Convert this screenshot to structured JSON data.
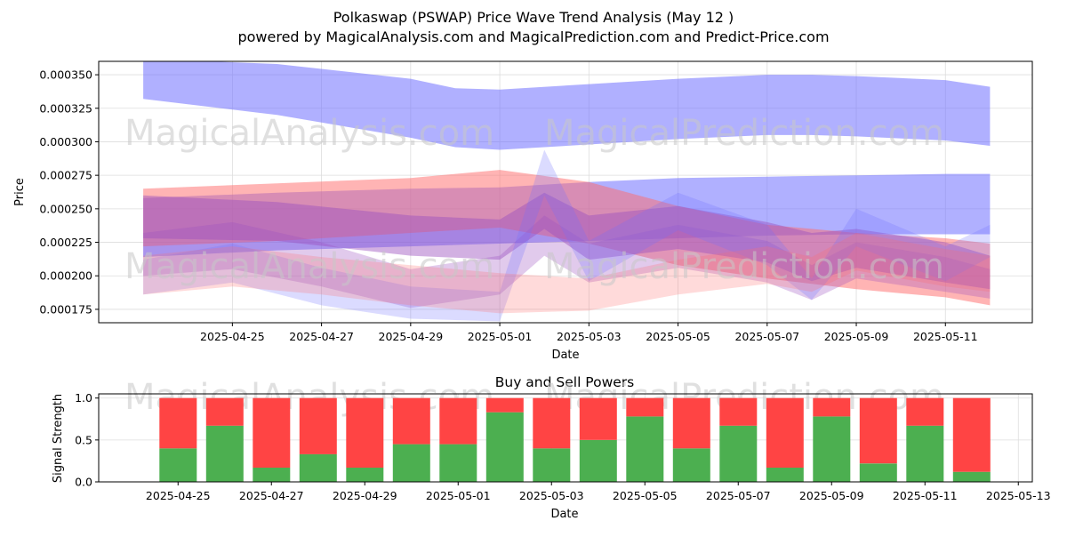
{
  "header": {
    "title": "Polkaswap (PSWAP) Price Wave Trend Analysis (May 12 )",
    "subtitle": "powered by MagicalAnalysis.com and MagicalPrediction.com and Predict-Price.com"
  },
  "watermarks": {
    "analysis": "MagicalAnalysis.com",
    "prediction": "MagicalPrediction.com"
  },
  "colors": {
    "blue_band": "#6f6fff",
    "red_band": "#ff6a6a",
    "purple_band": "#9b4fbf",
    "buy": "#4caf50",
    "sell": "#ff4444",
    "grid": "#dddddd"
  },
  "chart_data": [
    {
      "type": "area",
      "title": "",
      "xlabel": "Date",
      "ylabel": "Price",
      "ylim": [
        0.000165,
        0.00036
      ],
      "xlim": [
        "2025-04-22",
        "2025-05-12"
      ],
      "grid": true,
      "x_ticks": [
        "2025-04-25",
        "2025-04-27",
        "2025-04-29",
        "2025-05-01",
        "2025-05-03",
        "2025-05-05",
        "2025-05-07",
        "2025-05-09",
        "2025-05-11"
      ],
      "y_ticks": [
        "0.000175",
        "0.000200",
        "0.000225",
        "0.000250",
        "0.000275",
        "0.000300",
        "0.000325",
        "0.000350"
      ],
      "bands": [
        {
          "color": "blue",
          "x": [
            "2025-04-23",
            "2025-04-26",
            "2025-04-29",
            "2025-04-30",
            "2025-05-01",
            "2025-05-03",
            "2025-05-05",
            "2025-05-07",
            "2025-05-08",
            "2025-05-09",
            "2025-05-11",
            "2025-05-12"
          ],
          "upper": [
            0.000362,
            0.000358,
            0.000347,
            0.00034,
            0.000339,
            0.000343,
            0.000347,
            0.00035,
            0.00035,
            0.000349,
            0.000346,
            0.000341
          ],
          "lower": [
            0.000332,
            0.00032,
            0.000303,
            0.000296,
            0.000294,
            0.000298,
            0.000302,
            0.000305,
            0.000305,
            0.000304,
            0.000301,
            0.000297
          ]
        },
        {
          "color": "blue",
          "x": [
            "2025-04-23",
            "2025-04-26",
            "2025-04-29",
            "2025-05-01",
            "2025-05-03",
            "2025-05-05",
            "2025-05-07",
            "2025-05-09",
            "2025-05-11",
            "2025-05-12"
          ],
          "upper": [
            0.000258,
            0.000262,
            0.000265,
            0.000266,
            0.00027,
            0.000273,
            0.000274,
            0.000275,
            0.000276,
            0.000276
          ],
          "lower": [
            0.000214,
            0.000219,
            0.000222,
            0.000224,
            0.000226,
            0.000228,
            0.00023,
            0.000231,
            0.000231,
            0.000231
          ]
        },
        {
          "color": "red",
          "x": [
            "2025-04-23",
            "2025-04-26",
            "2025-04-29",
            "2025-05-01",
            "2025-05-03",
            "2025-05-05",
            "2025-05-07",
            "2025-05-09",
            "2025-05-11",
            "2025-05-12"
          ],
          "upper": [
            0.000265,
            0.000269,
            0.000273,
            0.000279,
            0.00027,
            0.000252,
            0.000238,
            0.000232,
            0.000228,
            0.000224
          ],
          "lower": [
            0.000222,
            0.000226,
            0.000232,
            0.000236,
            0.000224,
            0.000208,
            0.000198,
            0.00019,
            0.000184,
            0.000178
          ]
        },
        {
          "color": "purple",
          "x": [
            "2025-04-23",
            "2025-04-26",
            "2025-04-29",
            "2025-05-01",
            "2025-05-02",
            "2025-05-03",
            "2025-05-05",
            "2025-05-07",
            "2025-05-08",
            "2025-05-09",
            "2025-05-11",
            "2025-05-12"
          ],
          "upper": [
            0.00026,
            0.000255,
            0.000245,
            0.000242,
            0.000262,
            0.000245,
            0.000252,
            0.00024,
            0.000232,
            0.000235,
            0.000225,
            0.000215
          ],
          "lower": [
            0.000228,
            0.000226,
            0.000215,
            0.000212,
            0.000235,
            0.000212,
            0.00022,
            0.00021,
            0.000196,
            0.000206,
            0.000195,
            0.00019
          ]
        },
        {
          "color": "purple",
          "x": [
            "2025-04-23",
            "2025-04-25",
            "2025-04-27",
            "2025-04-29",
            "2025-05-01",
            "2025-05-02",
            "2025-05-03",
            "2025-05-05",
            "2025-05-07",
            "2025-05-08",
            "2025-05-09",
            "2025-05-11",
            "2025-05-12"
          ],
          "upper": [
            0.000232,
            0.00024,
            0.000225,
            0.000205,
            0.000215,
            0.000245,
            0.000224,
            0.000238,
            0.000226,
            0.000208,
            0.000225,
            0.000214,
            0.000205
          ],
          "lower": [
            0.0002,
            0.000205,
            0.000192,
            0.000176,
            0.000186,
            0.000215,
            0.000195,
            0.000206,
            0.000195,
            0.000182,
            0.000198,
            0.000188,
            0.000183
          ]
        },
        {
          "color": "blue",
          "x": [
            "2025-04-23",
            "2025-04-25",
            "2025-04-27",
            "2025-04-29",
            "2025-05-01",
            "2025-05-02",
            "2025-05-03",
            "2025-05-05",
            "2025-05-07",
            "2025-05-08",
            "2025-05-09",
            "2025-05-11",
            "2025-05-12"
          ],
          "upper": [
            0.000212,
            0.000224,
            0.000206,
            0.000192,
            0.000188,
            0.000294,
            0.000226,
            0.000262,
            0.000238,
            0.000198,
            0.00025,
            0.000222,
            0.000238
          ],
          "lower": [
            0.000186,
            0.000195,
            0.000178,
            0.000168,
            0.000166,
            0.00026,
            0.000196,
            0.000234,
            0.000208,
            0.000182,
            0.000222,
            0.000196,
            0.000214
          ]
        },
        {
          "color": "red",
          "x": [
            "2025-04-23",
            "2025-04-25",
            "2025-04-27",
            "2025-04-29",
            "2025-05-01",
            "2025-05-03",
            "2025-05-05",
            "2025-05-07",
            "2025-05-08",
            "2025-05-09",
            "2025-05-11",
            "2025-05-12"
          ],
          "upper": [
            0.000215,
            0.000222,
            0.000214,
            0.000208,
            0.000202,
            0.000198,
            0.000212,
            0.000222,
            0.000214,
            0.000232,
            0.00022,
            0.000215
          ],
          "lower": [
            0.000186,
            0.000192,
            0.000186,
            0.000178,
            0.000172,
            0.000174,
            0.000186,
            0.000194,
            0.000188,
            0.000204,
            0.000192,
            0.000188
          ]
        }
      ]
    },
    {
      "type": "bar",
      "title": "Buy and Sell Powers",
      "xlabel": "Date",
      "ylabel": "Signal Strength",
      "ylim": [
        0,
        1.05
      ],
      "xlim": [
        "2025-04-23.3",
        "2025-05-13.3"
      ],
      "grid": true,
      "x_ticks": [
        "2025-04-25",
        "2025-04-27",
        "2025-04-29",
        "2025-05-01",
        "2025-05-03",
        "2025-05-05",
        "2025-05-07",
        "2025-05-09",
        "2025-05-11",
        "2025-05-13"
      ],
      "y_ticks": [
        "0.0",
        "0.5",
        "1.0"
      ],
      "categories": [
        "2025-04-25",
        "2025-04-26",
        "2025-04-27",
        "2025-04-28",
        "2025-04-29",
        "2025-04-30",
        "2025-05-01",
        "2025-05-02",
        "2025-05-03",
        "2025-05-04",
        "2025-05-05",
        "2025-05-06",
        "2025-05-07",
        "2025-05-08",
        "2025-05-09",
        "2025-05-10",
        "2025-05-11",
        "2025-05-12"
      ],
      "series": [
        {
          "name": "Buy",
          "values": [
            0.4,
            0.67,
            0.17,
            0.33,
            0.17,
            0.45,
            0.45,
            0.83,
            0.4,
            0.5,
            0.78,
            0.4,
            0.67,
            0.17,
            0.78,
            0.22,
            0.67,
            0.12
          ]
        },
        {
          "name": "Sell",
          "values": [
            0.6,
            0.33,
            0.83,
            0.67,
            0.83,
            0.55,
            0.55,
            0.17,
            0.6,
            0.5,
            0.22,
            0.6,
            0.33,
            0.83,
            0.22,
            0.78,
            0.33,
            0.88
          ]
        }
      ]
    }
  ]
}
